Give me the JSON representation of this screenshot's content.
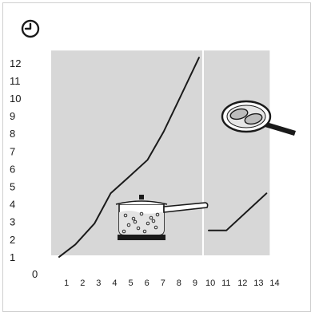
{
  "chart_data": {
    "type": "line",
    "title": "",
    "xlabel": "",
    "ylabel": "",
    "origin_label": "0",
    "x_ticks": [
      1,
      2,
      3,
      4,
      5,
      6,
      7,
      8,
      9,
      10,
      11,
      12,
      13,
      14
    ],
    "y_ticks": [
      1,
      2,
      3,
      4,
      5,
      6,
      7,
      8,
      9,
      10,
      11,
      12
    ],
    "xlim": [
      0,
      14.5
    ],
    "ylim": [
      0,
      12.7
    ],
    "y_axis_icon": "clock-icon",
    "grid": false,
    "panels": [
      {
        "x_range": [
          0,
          9.4
        ],
        "illustration": "pot-of-boiling-water-on-hob",
        "series": {
          "x": [
            0.5,
            1.5,
            2.7,
            3.7,
            4.8,
            6.0,
            7.0,
            8.0,
            9.2
          ],
          "y": [
            1.0,
            1.7,
            2.9,
            4.6,
            5.5,
            6.5,
            8.1,
            10.0,
            12.3
          ]
        }
      },
      {
        "x_range": [
          9.5,
          13.6
        ],
        "illustration": "frying-pan-with-food",
        "series": {
          "x": [
            9.8,
            10.9,
            13.4
          ],
          "y": [
            2.5,
            2.5,
            4.6
          ]
        }
      }
    ],
    "colors": {
      "panel_fill": "#d7d7d7",
      "line": "#1a1a1a",
      "background": "#ffffff"
    }
  }
}
